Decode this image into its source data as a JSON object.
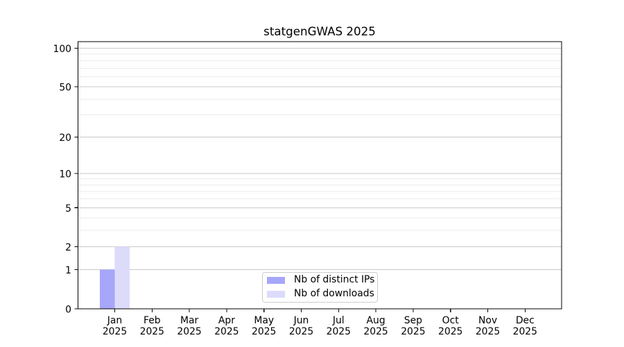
{
  "title": "statgenGWAS 2025",
  "colors": {
    "background": "#ffffff",
    "axis": "#000000",
    "text": "#000000",
    "grid_major": "#c9c9c9",
    "grid_minor": "#ebebeb",
    "legend_border": "#cccccc"
  },
  "chart_data": {
    "type": "bar",
    "title": "statgenGWAS 2025",
    "categories": [
      {
        "month": "Jan",
        "year": "2025"
      },
      {
        "month": "Feb",
        "year": "2025"
      },
      {
        "month": "Mar",
        "year": "2025"
      },
      {
        "month": "Apr",
        "year": "2025"
      },
      {
        "month": "May",
        "year": "2025"
      },
      {
        "month": "Jun",
        "year": "2025"
      },
      {
        "month": "Jul",
        "year": "2025"
      },
      {
        "month": "Aug",
        "year": "2025"
      },
      {
        "month": "Sep",
        "year": "2025"
      },
      {
        "month": "Oct",
        "year": "2025"
      },
      {
        "month": "Nov",
        "year": "2025"
      },
      {
        "month": "Dec",
        "year": "2025"
      }
    ],
    "series": [
      {
        "name": "Nb of distinct IPs",
        "color": "#a6a6fa",
        "values": [
          1,
          0,
          0,
          0,
          0,
          0,
          0,
          0,
          0,
          0,
          0,
          0
        ]
      },
      {
        "name": "Nb of downloads",
        "color": "#dcdcfa",
        "values": [
          2,
          0,
          0,
          0,
          0,
          0,
          0,
          0,
          0,
          0,
          0,
          0
        ]
      }
    ],
    "xlabel": "",
    "ylabel": "",
    "y_scale": "log10(x+1)",
    "ylim": [
      0,
      112
    ],
    "y_ticks": [
      0,
      1,
      2,
      5,
      10,
      20,
      50,
      100
    ],
    "y_minor_gridlines": [
      3,
      4,
      6,
      7,
      8,
      9,
      30,
      40,
      60,
      70,
      80,
      90
    ],
    "grid": "horizontal",
    "legend_position": "lower center"
  }
}
